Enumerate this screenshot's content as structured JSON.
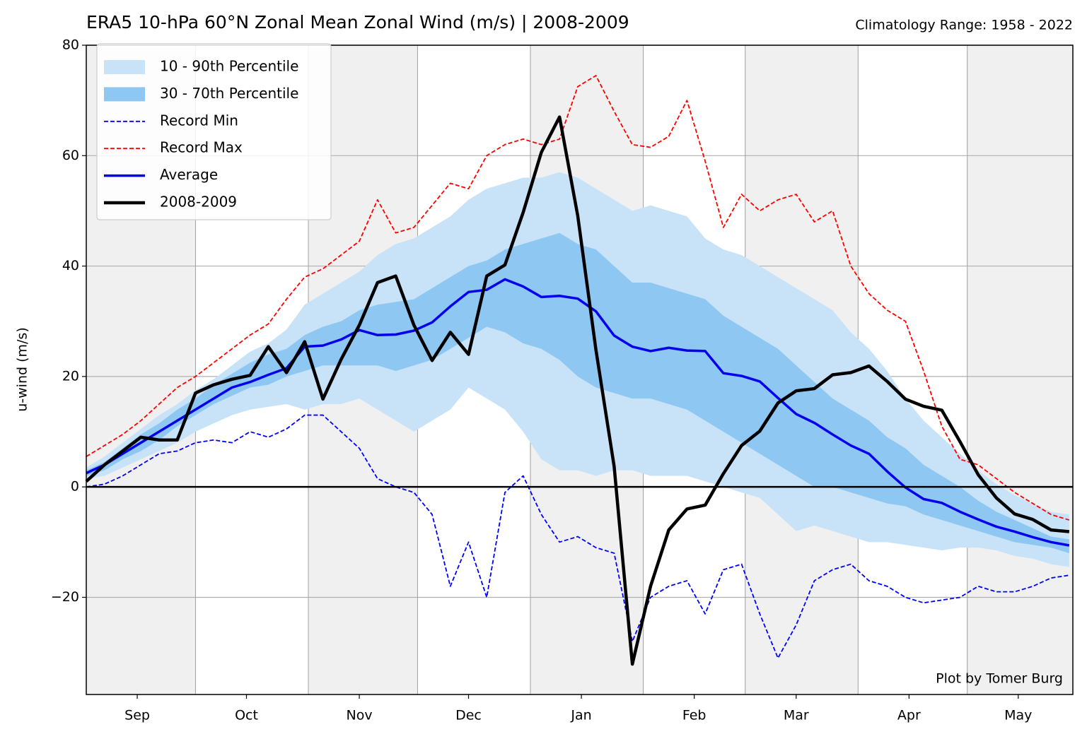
{
  "chart_data": {
    "type": "line",
    "title": "ERA5 10-hPa 60°N Zonal Mean Zonal Wind (m/s) | 2008-2009",
    "subtitle": "Climatology Range: 1958 - 2022",
    "y_label": "u-wind (m/s)",
    "annotation": "Plot by Tomer Burg",
    "xlim": [
      0,
      271
    ],
    "xticks": [
      {
        "value": 14,
        "label": "Sep"
      },
      {
        "value": 44,
        "label": "Oct"
      },
      {
        "value": 75,
        "label": "Nov"
      },
      {
        "value": 105,
        "label": "Dec"
      },
      {
        "value": 136,
        "label": "Jan"
      },
      {
        "value": 167,
        "label": "Feb"
      },
      {
        "value": 195,
        "label": "Mar"
      },
      {
        "value": 226,
        "label": "Apr"
      },
      {
        "value": 256,
        "label": "May"
      }
    ],
    "xminor": [
      30,
      61,
      91,
      122,
      153,
      181,
      212,
      242
    ],
    "ylim": [
      -37.6,
      80
    ],
    "yticks": [
      {
        "value": -20,
        "label": "−20"
      },
      0,
      20,
      40,
      60,
      80
    ],
    "zero_line": 0,
    "grid": true,
    "legend": "upper left",
    "x": [
      0,
      5,
      10,
      15,
      20,
      25,
      30,
      35,
      40,
      45,
      50,
      55,
      60,
      65,
      70,
      75,
      80,
      85,
      90,
      95,
      100,
      105,
      110,
      115,
      120,
      125,
      130,
      135,
      140,
      145,
      150,
      155,
      160,
      165,
      170,
      175,
      180,
      185,
      190,
      195,
      200,
      205,
      210,
      215,
      220,
      225,
      230,
      235,
      240,
      245,
      250,
      255,
      260,
      265,
      270
    ],
    "series": [
      {
        "name": "10 - 90th Percentile",
        "type": "band",
        "color": "#c8e3f8",
        "low": [
          1.5,
          2,
          3.5,
          5,
          6.5,
          8,
          10,
          11.5,
          13,
          14,
          14.5,
          15,
          14,
          15,
          15,
          16,
          14,
          12,
          10,
          12,
          14,
          18,
          16,
          14,
          10,
          5,
          3,
          3,
          2,
          3,
          3,
          2,
          2,
          2,
          1,
          0,
          -1,
          -2,
          -5,
          -8,
          -7,
          -8,
          -9,
          -10,
          -10,
          -10.5,
          -11,
          -11.5,
          -11,
          -11,
          -11.5,
          -12.5,
          -13,
          -14,
          -14.5
        ],
        "high": [
          3.5,
          5.5,
          8,
          10.5,
          13,
          15,
          17.5,
          19.5,
          22,
          24.5,
          26,
          28.5,
          33,
          35,
          37,
          39,
          42,
          44,
          45,
          47,
          49,
          52,
          54,
          55,
          56,
          56,
          57,
          56,
          54,
          52,
          50,
          51,
          50,
          49,
          45,
          43,
          42,
          40,
          38,
          36,
          34,
          32,
          28,
          25,
          21,
          16,
          12,
          9,
          6,
          3,
          0.5,
          -1.5,
          -3,
          -4.5,
          -5
        ]
      },
      {
        "name": "30 - 70th Percentile",
        "type": "band",
        "color": "#8dc7f2",
        "low": [
          2,
          3,
          5,
          6.5,
          8.5,
          11,
          13,
          15,
          16.5,
          18,
          18.5,
          20,
          21,
          22,
          22,
          22,
          22,
          21,
          22,
          23,
          25,
          27,
          29,
          28,
          26,
          25,
          23,
          20,
          18,
          17,
          16,
          16,
          15,
          14,
          12,
          10,
          8,
          6,
          4,
          2,
          0,
          0,
          -1,
          -2,
          -3,
          -3.5,
          -5,
          -6,
          -7,
          -8,
          -9,
          -10,
          -10.5,
          -11,
          -12
        ],
        "high": [
          3,
          4.5,
          7,
          9.5,
          11.5,
          14,
          16,
          18.5,
          20.5,
          22.5,
          24,
          25,
          27.5,
          29,
          30,
          32,
          33,
          33.5,
          34,
          36,
          38,
          40,
          41,
          43,
          44,
          45,
          46,
          44,
          43,
          40,
          37,
          37,
          36,
          35,
          34,
          31,
          29,
          27,
          25,
          22,
          19,
          16,
          14,
          12,
          9,
          7,
          4,
          2,
          0,
          -2.5,
          -4.5,
          -6,
          -7.5,
          -9,
          -9.5
        ]
      },
      {
        "name": "Record Min",
        "type": "line",
        "style": "dashed",
        "color": "#0000ff",
        "values": [
          0,
          0.5,
          2,
          4,
          6,
          6.5,
          8,
          8.5,
          8,
          10,
          9,
          10.5,
          13,
          13,
          10,
          7,
          1.5,
          0,
          -1,
          -5,
          -18,
          -10,
          -20,
          -1,
          2,
          -5,
          -10,
          -9,
          -11,
          -12,
          -28,
          -20,
          -18,
          -17,
          -23,
          -15,
          -14,
          -23,
          -31,
          -25,
          -17,
          -15,
          -14,
          -17,
          -18,
          -20,
          -21,
          -20.5,
          -20,
          -18,
          -19,
          -19,
          -18,
          -16.5,
          -16
        ]
      },
      {
        "name": "Record Max",
        "type": "line",
        "style": "dashed",
        "color": "#ff0000",
        "values": [
          5.5,
          7.5,
          9.5,
          12,
          15,
          18,
          20,
          22.5,
          25,
          27.5,
          29.5,
          34,
          38,
          39.5,
          42,
          44.5,
          52,
          46,
          47,
          51,
          55,
          54,
          60,
          62,
          63,
          62,
          63,
          72.5,
          74.5,
          68,
          62,
          61.5,
          63.5,
          70,
          59,
          47,
          53,
          50,
          52,
          53,
          48,
          50,
          40,
          35,
          32,
          30,
          21,
          11,
          5,
          4,
          1.5,
          -1,
          -3,
          -5,
          -6
        ]
      },
      {
        "name": "Average",
        "type": "line",
        "style": "solid",
        "color": "#0000ee",
        "values": [
          2.5,
          4,
          6,
          8,
          10,
          12,
          14,
          16,
          18,
          19,
          20.3,
          21.5,
          25.4,
          25.6,
          26.7,
          28.4,
          27.5,
          27.6,
          28.3,
          29.8,
          32.7,
          35.3,
          35.7,
          37.6,
          36.3,
          34.4,
          34.6,
          34.1,
          31.8,
          27.4,
          25.4,
          24.6,
          25.2,
          24.7,
          24.6,
          20.6,
          20.1,
          19.1,
          16.1,
          13.2,
          11.6,
          9.5,
          7.5,
          6,
          2.8,
          -0.1,
          -2.2,
          -2.9,
          -4.5,
          -5.9,
          -7.2,
          -8.1,
          -9.1,
          -10,
          -10.6
        ]
      },
      {
        "name": "2008-2009",
        "type": "line",
        "style": "solid",
        "color": "#000000",
        "values": [
          1,
          4,
          6.5,
          9,
          8.5,
          8.5,
          17,
          18.5,
          19.5,
          20.2,
          25.4,
          20.7,
          26.3,
          15.9,
          23.1,
          29.3,
          37,
          38.2,
          29.3,
          22.9,
          28,
          24,
          38.2,
          40.2,
          49.7,
          60.6,
          67,
          49.1,
          24.8,
          3.7,
          -32.1,
          -18,
          -7.8,
          -4,
          -3.3,
          2.4,
          7.5,
          10.1,
          15.2,
          17.4,
          17.8,
          20.3,
          20.7,
          21.9,
          19.1,
          15.9,
          14.6,
          13.9,
          8.2,
          2.2,
          -2,
          -4.9,
          -5.9,
          -7.8,
          -8.1
        ]
      }
    ]
  }
}
